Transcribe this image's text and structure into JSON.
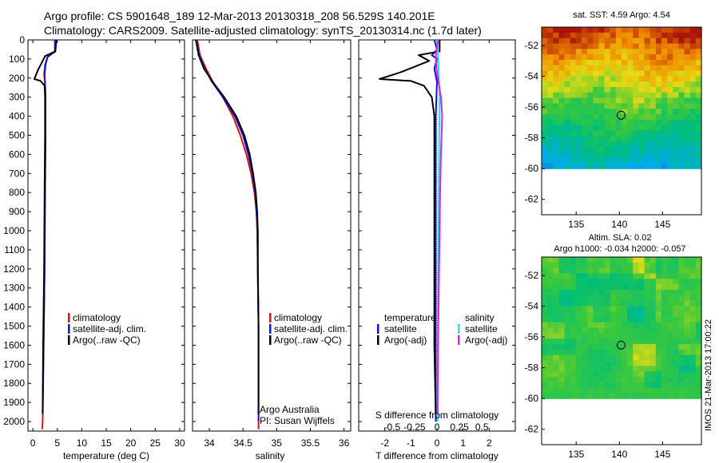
{
  "header": {
    "line1": "Argo profile: CS 5901648_189 12-Mar-2013 20130318_208 56.529S 140.201E",
    "line2": "Climatology: CARS2009. Satellite-adjusted climatology: synTS_20130314.nc (1.7d later)"
  },
  "side_stamp": "IMOS 21-Mar-2013 17:00:22",
  "colors": {
    "climatology": "#e01010",
    "satellite_adj": "#1010e0",
    "argo": "#000000",
    "satellite_s": "#19e6e6",
    "argo_s": "#e619e6",
    "zero_line": "#0aa00a"
  },
  "chart_data": [
    {
      "type": "line",
      "panel": "temperature",
      "xlabel": "temperature (deg C)",
      "ylabel": "",
      "xlim": [
        -1,
        31
      ],
      "ylim": [
        2050,
        0
      ],
      "xticks": [
        "0",
        "5",
        "10",
        "15",
        "20",
        "25",
        "30"
      ],
      "xtick_values": [
        0,
        5,
        10,
        15,
        20,
        25,
        30
      ],
      "yticks": [
        0,
        100,
        200,
        300,
        400,
        500,
        600,
        700,
        800,
        900,
        1000,
        1100,
        1200,
        1300,
        1400,
        1500,
        1600,
        1700,
        1800,
        1900,
        2000
      ],
      "legend": [
        "climatology",
        "satellite-adj. clim.",
        "Argo(..raw -QC)"
      ],
      "series": [
        {
          "name": "climatology",
          "color_key": "climatology",
          "points": [
            [
              4.6,
              0
            ],
            [
              4.6,
              60
            ],
            [
              3.0,
              90
            ],
            [
              2.5,
              130
            ],
            [
              2.3,
              180
            ],
            [
              2.5,
              230
            ],
            [
              2.6,
              300
            ],
            [
              2.6,
              500
            ],
            [
              2.5,
              800
            ],
            [
              2.4,
              1200
            ],
            [
              2.2,
              1600
            ],
            [
              2.0,
              2000
            ],
            [
              1.9,
              2040
            ]
          ]
        },
        {
          "name": "satellite-adj. clim.",
          "color_key": "satellite_adj",
          "points": [
            [
              4.5,
              0
            ],
            [
              4.5,
              60
            ],
            [
              3.0,
              90
            ],
            [
              2.6,
              130
            ],
            [
              2.4,
              180
            ],
            [
              2.5,
              230
            ],
            [
              2.6,
              300
            ],
            [
              2.6,
              500
            ],
            [
              2.5,
              800
            ],
            [
              2.4,
              1200
            ],
            [
              2.2,
              1600
            ],
            [
              2.0,
              1950
            ]
          ]
        },
        {
          "name": "Argo(..raw -QC)",
          "color_key": "argo",
          "points": [
            [
              4.8,
              0
            ],
            [
              4.6,
              60
            ],
            [
              2.5,
              85
            ],
            [
              2.0,
              110
            ],
            [
              1.0,
              160
            ],
            [
              0.3,
              205
            ],
            [
              1.6,
              215
            ],
            [
              2.4,
              240
            ],
            [
              2.5,
              300
            ],
            [
              2.5,
              500
            ],
            [
              2.4,
              800
            ],
            [
              2.3,
              1200
            ],
            [
              2.1,
              1600
            ],
            [
              2.0,
              1960
            ]
          ]
        }
      ]
    },
    {
      "type": "line",
      "panel": "salinity",
      "xlabel": "salinity",
      "xlim": [
        33.75,
        36.1
      ],
      "ylim": [
        2050,
        0
      ],
      "xticks": [
        "34",
        "34.5",
        "35",
        "35.5",
        "36"
      ],
      "xtick_values": [
        34,
        34.5,
        35,
        35.5,
        36
      ],
      "legend": [
        "climatology",
        "satellite-adj. clim.",
        "Argo(..raw -QC)"
      ],
      "annotation": [
        "Argo Australia",
        "PI: Susan Wijffels"
      ],
      "series": [
        {
          "name": "climatology",
          "color_key": "climatology",
          "points": [
            [
              33.82,
              0
            ],
            [
              33.86,
              80
            ],
            [
              33.95,
              150
            ],
            [
              34.05,
              220
            ],
            [
              34.2,
              300
            ],
            [
              34.35,
              400
            ],
            [
              34.46,
              500
            ],
            [
              34.55,
              600
            ],
            [
              34.62,
              700
            ],
            [
              34.67,
              800
            ],
            [
              34.7,
              900
            ],
            [
              34.71,
              1000
            ],
            [
              34.72,
              1200
            ],
            [
              34.73,
              1500
            ],
            [
              34.73,
              2040
            ]
          ]
        },
        {
          "name": "satellite-adj. clim.",
          "color_key": "satellite_adj",
          "points": [
            [
              33.8,
              0
            ],
            [
              33.85,
              80
            ],
            [
              33.93,
              150
            ],
            [
              34.04,
              220
            ],
            [
              34.2,
              300
            ],
            [
              34.38,
              400
            ],
            [
              34.5,
              500
            ],
            [
              34.58,
              600
            ],
            [
              34.64,
              700
            ],
            [
              34.68,
              800
            ],
            [
              34.7,
              900
            ],
            [
              34.72,
              1000
            ],
            [
              34.72,
              1200
            ],
            [
              34.73,
              1500
            ],
            [
              34.73,
              2000
            ]
          ]
        },
        {
          "name": "Argo(..raw -QC)",
          "color_key": "argo",
          "points": [
            [
              33.8,
              0
            ],
            [
              33.84,
              80
            ],
            [
              33.92,
              150
            ],
            [
              34.05,
              220
            ],
            [
              34.22,
              300
            ],
            [
              34.4,
              400
            ],
            [
              34.52,
              500
            ],
            [
              34.6,
              600
            ],
            [
              34.65,
              700
            ],
            [
              34.69,
              800
            ],
            [
              34.71,
              900
            ],
            [
              34.72,
              1000
            ],
            [
              34.72,
              1200
            ],
            [
              34.73,
              1500
            ],
            [
              34.73,
              1960
            ]
          ]
        }
      ]
    },
    {
      "type": "line",
      "panel": "differences",
      "xlabel": "T difference from climatology",
      "top_label": "S difference from climatology",
      "xlim": [
        -3,
        3
      ],
      "ylim": [
        2050,
        0
      ],
      "xticks": [
        "-2",
        "-1",
        "0",
        "1",
        "2"
      ],
      "xtick_values": [
        -2,
        -1,
        0,
        1,
        2
      ],
      "sticks": [
        "-0.5",
        "-0.25",
        "0",
        "0.25",
        "0.5"
      ],
      "stick_values": [
        -0.5,
        -0.25,
        0,
        0.25,
        0.5
      ],
      "legend_left_title": "temperature",
      "legend_left": [
        "satellite",
        "Argo(-adj)"
      ],
      "legend_right_title": "salinity",
      "legend_right": [
        "satellite",
        "Argo(-adj)"
      ],
      "series": [
        {
          "name": "temperature satellite",
          "color_key": "satellite_adj",
          "points": [
            [
              -0.1,
              0
            ],
            [
              0,
              50
            ],
            [
              -0.2,
              80
            ],
            [
              0,
              100
            ],
            [
              -0.1,
              150
            ],
            [
              0,
              220
            ],
            [
              -0.05,
              400
            ],
            [
              -0.05,
              800
            ],
            [
              -0.05,
              1200
            ],
            [
              -0.05,
              1600
            ],
            [
              -0.05,
              2000
            ]
          ]
        },
        {
          "name": "temperature Argo(-adj)",
          "color_key": "argo",
          "points": [
            [
              0.1,
              0
            ],
            [
              0.1,
              60
            ],
            [
              -0.7,
              80
            ],
            [
              -0.3,
              110
            ],
            [
              -1.4,
              170
            ],
            [
              -2.2,
              205
            ],
            [
              -1.0,
              215
            ],
            [
              -0.5,
              240
            ],
            [
              -0.2,
              300
            ],
            [
              -0.1,
              400
            ],
            [
              -0.1,
              800
            ],
            [
              -0.1,
              1200
            ],
            [
              -0.1,
              1600
            ],
            [
              -0.05,
              1960
            ]
          ]
        },
        {
          "name": "salinity satellite",
          "color_key": "satellite_s",
          "points": [
            [
              0,
              0
            ],
            [
              0.05,
              100
            ],
            [
              0.1,
              300
            ],
            [
              0.08,
              600
            ],
            [
              0.06,
              1000
            ],
            [
              0.04,
              1500
            ],
            [
              0.02,
              2000
            ]
          ]
        },
        {
          "name": "salinity Argo(-adj)",
          "color_key": "argo_s",
          "points": [
            [
              0.05,
              0
            ],
            [
              -0.05,
              80
            ],
            [
              -0.02,
              150
            ],
            [
              0.15,
              300
            ],
            [
              0.2,
              400
            ],
            [
              0.15,
              600
            ],
            [
              0.12,
              800
            ],
            [
              0.08,
              1200
            ],
            [
              0.04,
              1600
            ],
            [
              0.02,
              1960
            ]
          ]
        }
      ]
    }
  ],
  "maps": [
    {
      "title_line1": "sat. SST: 4.59  Argo: 4.54",
      "title_line2": "",
      "kind": "sst",
      "xticks": [
        "135",
        "140",
        "145"
      ],
      "xtick_values": [
        135,
        140,
        145
      ],
      "yticks": [
        "-52",
        "-54",
        "-56",
        "-58",
        "-60",
        "-62"
      ],
      "ytick_values": [
        -52,
        -54,
        -56,
        -58,
        -60,
        -62
      ],
      "xlim": [
        131,
        149.5
      ],
      "ylim": [
        -63,
        -50.8
      ],
      "data_bottom": -60,
      "marker": [
        140.201,
        -56.529
      ]
    },
    {
      "title_line1": "Altim. SLA: 0.02",
      "title_line2": "Argo h1000: -0.034 h2000: -0.057",
      "kind": "sla",
      "xticks": [
        "135",
        "140",
        "145"
      ],
      "xtick_values": [
        135,
        140,
        145
      ],
      "yticks": [
        "-52",
        "-54",
        "-56",
        "-58",
        "-60",
        "-62"
      ],
      "ytick_values": [
        -52,
        -54,
        -56,
        -58,
        -60,
        -62
      ],
      "xlim": [
        131,
        149.5
      ],
      "ylim": [
        -63,
        -50.8
      ],
      "data_bottom": -60,
      "marker": [
        140.201,
        -56.529
      ]
    }
  ]
}
